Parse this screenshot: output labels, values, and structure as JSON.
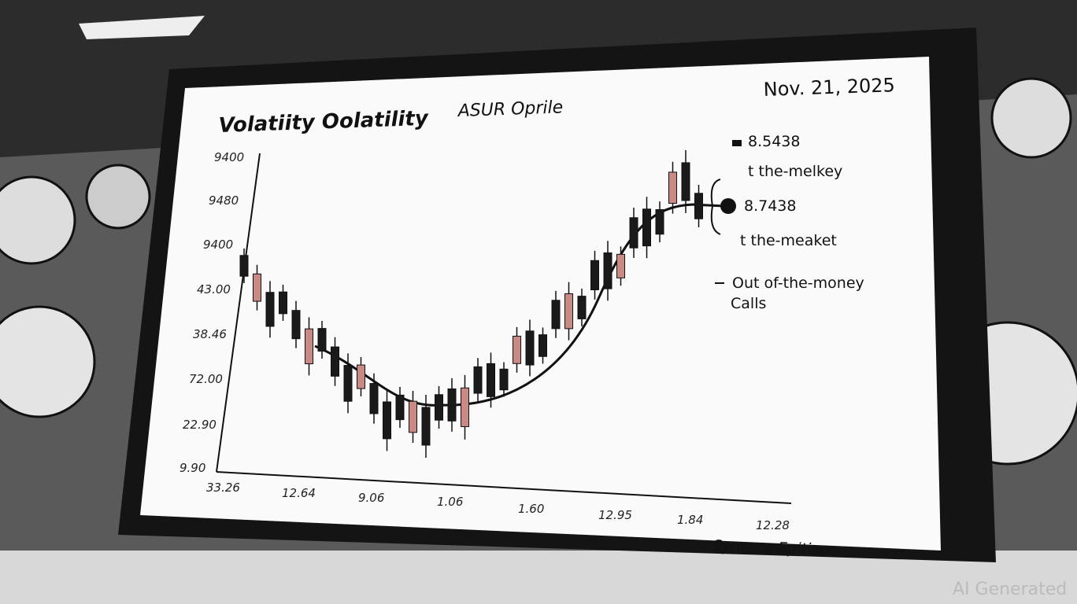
{
  "screen": {
    "title": "Volatiity Oolatility",
    "subtitle": "ASUR Oprile",
    "date": "Nov. 21, 2025",
    "y_labels": [
      "9400",
      "9480",
      "9400",
      "43.00",
      "38.46",
      "72.00",
      "22.90",
      "9.90"
    ],
    "x_labels": [
      "33.26",
      "12.64",
      "9.06",
      "1.06",
      "1.60",
      "12.95",
      "1.84",
      "12.28"
    ],
    "annotations": [
      "8.5438",
      "t the-melkey",
      "8.7438",
      "t the-meaket",
      "Out of-the-money",
      "Calls"
    ],
    "footer": "Synrace Epition"
  },
  "watermark": "AI Generated"
}
